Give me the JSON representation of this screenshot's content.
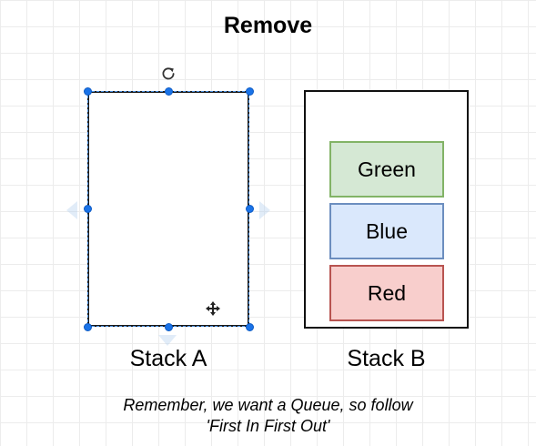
{
  "canvas": {
    "title": "Remove",
    "accent_color": "#1a73e8",
    "grid_color": "#ececec"
  },
  "stack_a": {
    "label": "Stack A",
    "selected": true
  },
  "stack_b": {
    "label": "Stack B",
    "blocks": [
      {
        "label": "Green",
        "fill": "#d5e8d4",
        "stroke": "#82b366"
      },
      {
        "label": "Blue",
        "fill": "#dae8fc",
        "stroke": "#6c8ebf"
      },
      {
        "label": "Red",
        "fill": "#f8cecc",
        "stroke": "#b85450"
      }
    ]
  },
  "note": {
    "line1": "Remember, we want a Queue, so follow",
    "line2": "'First In First Out'"
  },
  "icons": {
    "rotate": "rotate-icon",
    "move": "move-cursor-icon"
  }
}
